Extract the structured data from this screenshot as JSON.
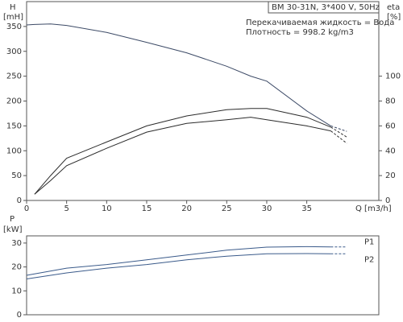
{
  "chart_data": [
    {
      "type": "line",
      "annotations": [
        "BM 30-31N, 3*400 V, 50Hz",
        "Перекачиваемая жидкость = Вода",
        "Плотность = 998.2 kg/m3"
      ],
      "y_label": "H",
      "y_unit": "[mH]",
      "y2_label": "eta",
      "y2_unit": "[%]",
      "x_label": "Q [m3/h]",
      "x": [
        0,
        1,
        3,
        5,
        10,
        15,
        20,
        25,
        28,
        30,
        35,
        38,
        40
      ],
      "series": [
        {
          "color": "#3c4a66",
          "values": [
            353,
            354,
            355,
            352,
            338,
            318,
            297,
            270,
            250,
            240,
            180,
            150,
            139
          ]
        },
        {
          "color": "#2b2b2b",
          "axis": "y2",
          "values": [
            null,
            5,
            20,
            34,
            47,
            60,
            68,
            73,
            74,
            74,
            67,
            59,
            51
          ]
        },
        {
          "color": "#2b2b2b",
          "axis": "y2",
          "values": [
            null,
            5,
            16,
            28,
            42,
            55,
            62,
            65,
            67,
            65,
            60,
            56,
            46
          ]
        }
      ],
      "dashed_from": 38,
      "xlim": [
        0,
        44
      ],
      "xticks": [
        0,
        5,
        10,
        15,
        20,
        25,
        30,
        35
      ],
      "ylim": [
        0,
        400
      ],
      "yticks": [
        0,
        50,
        100,
        150,
        200,
        250,
        300,
        350
      ],
      "y2lim": [
        0,
        160
      ],
      "y2ticks": [
        0,
        20,
        40,
        60,
        80,
        100
      ]
    },
    {
      "type": "line",
      "y_label": "P",
      "y_unit": "[kW]",
      "x": [
        0,
        5,
        10,
        15,
        20,
        25,
        30,
        35,
        38,
        40
      ],
      "series": [
        {
          "name": "P1",
          "color": "#3a5a8a",
          "values": [
            16.5,
            19.5,
            21,
            23,
            25,
            27,
            28.3,
            28.5,
            28.4,
            28.4
          ]
        },
        {
          "name": "P2",
          "color": "#3a5a8a",
          "values": [
            15,
            17.5,
            19.5,
            21,
            23,
            24.5,
            25.5,
            25.6,
            25.5,
            25.5
          ]
        }
      ],
      "dashed_from": 38,
      "xlim": [
        0,
        44
      ],
      "ylim": [
        0,
        33
      ],
      "yticks": [
        0,
        10,
        20,
        30
      ]
    }
  ]
}
